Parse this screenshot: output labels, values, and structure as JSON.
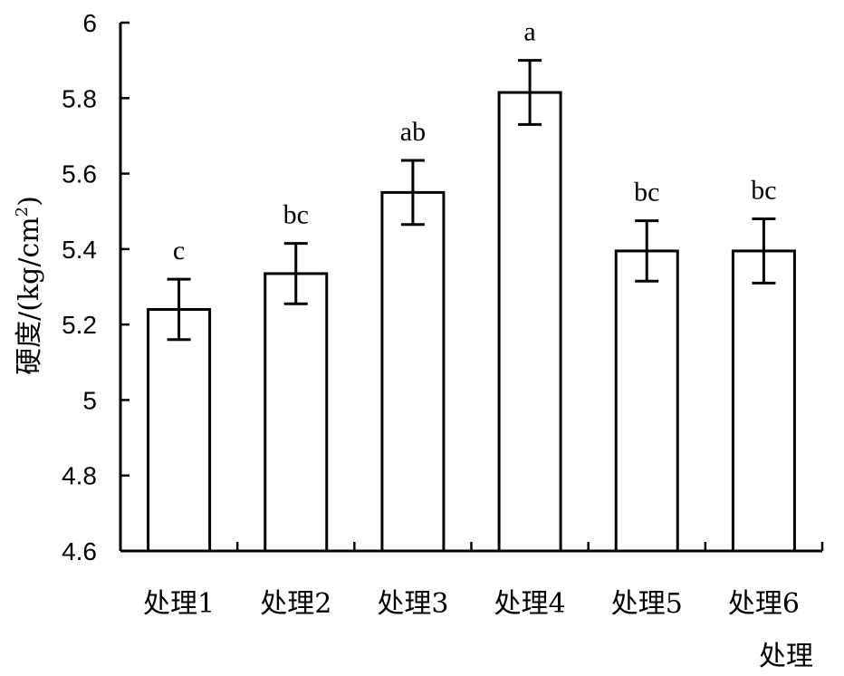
{
  "chart_data": {
    "type": "bar",
    "title": "",
    "xlabel": "处理",
    "ylabel": "硬度/(kg/cm²)",
    "ylabel_parts": {
      "main": "硬度/(kg/cm",
      "sup": "2",
      "close": ")"
    },
    "categories": [
      "处理1",
      "处理2",
      "处理3",
      "处理4",
      "处理5",
      "处理6"
    ],
    "values": [
      5.24,
      5.335,
      5.55,
      5.815,
      5.395,
      5.395
    ],
    "errors": [
      0.08,
      0.08,
      0.085,
      0.085,
      0.08,
      0.085
    ],
    "significance_labels": [
      "c",
      "bc",
      "ab",
      "a",
      "bc",
      "bc"
    ],
    "ylim": [
      4.6,
      6
    ],
    "yticks": [
      "4.6",
      "4.8",
      "5",
      "5.2",
      "5.4",
      "5.6",
      "5.8",
      "6"
    ],
    "grid": false,
    "legend": "none"
  },
  "colors": {
    "bar_fill": "#ffffff",
    "bar_stroke": "#000000",
    "axis": "#000000"
  }
}
